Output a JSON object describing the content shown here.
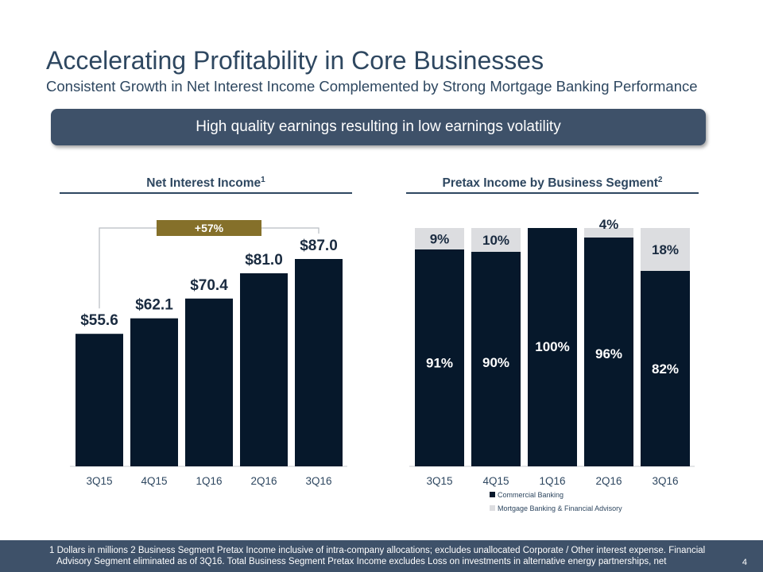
{
  "header": {
    "title": "Accelerating Profitability in Core Businesses",
    "subtitle": "Consistent Growth in Net Interest Income Complemented by Strong Mortgage Banking Performance",
    "banner": "High quality earnings resulting in low earnings volatility"
  },
  "left_section": {
    "title": "Net Interest Income",
    "footnote_ref": "1"
  },
  "right_section": {
    "title": "Pretax Income by Business Segment",
    "footnote_ref": "2"
  },
  "colors": {
    "navy": "#06182b",
    "gray": "#dcdde0",
    "gold": "#85702a",
    "bracket": "#b8bcc2"
  },
  "chart_data": [
    {
      "type": "bar",
      "title": "Net Interest Income",
      "categories": [
        "3Q15",
        "4Q15",
        "1Q16",
        "2Q16",
        "3Q16"
      ],
      "values": [
        55.6,
        62.1,
        70.4,
        81.0,
        87.0
      ],
      "data_labels": [
        "$55.6",
        "$62.1",
        "$70.4",
        "$81.0",
        "$87.0"
      ],
      "ylim": [
        0,
        100
      ],
      "growth_label": "+57%"
    },
    {
      "type": "bar",
      "stacked": true,
      "title": "Pretax Income by Business Segment",
      "categories": [
        "3Q15",
        "4Q15",
        "1Q16",
        "2Q16",
        "3Q16"
      ],
      "series": [
        {
          "name": "Commercial Banking",
          "values": [
            91,
            90,
            100,
            96,
            82
          ],
          "labels": [
            "91%",
            "90%",
            "100%",
            "96%",
            "82%"
          ]
        },
        {
          "name": "Mortgage Banking & Financial Advisory",
          "values": [
            9,
            10,
            0,
            4,
            18
          ],
          "labels": [
            "9%",
            "10%",
            "",
            "4%",
            "18%"
          ]
        }
      ],
      "ylim": [
        0,
        100
      ],
      "legend": "bottom"
    }
  ],
  "footer": {
    "footnote": "1  Dollars in millions      2  Business Segment Pretax Income inclusive of intra-company allocations; excludes unallocated Corporate / Other interest expense.  Financial Advisory Segment eliminated as of 3Q16. Total Business Segment Pretax Income excludes Loss on investments in alternative energy partnerships, net",
    "page_number": "4"
  }
}
